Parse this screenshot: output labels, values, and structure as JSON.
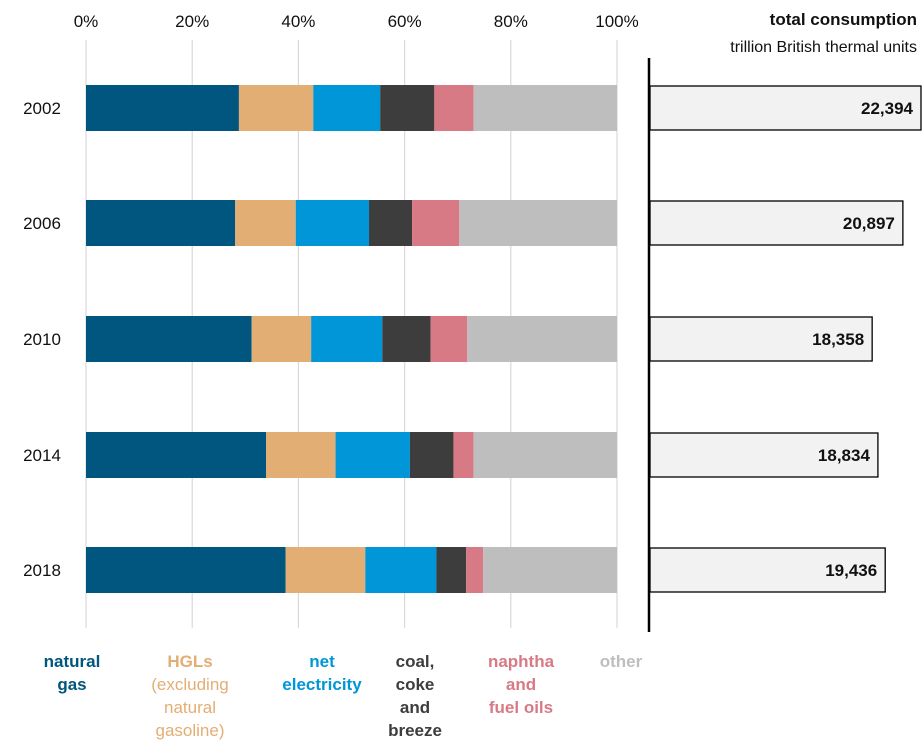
{
  "chart_data": {
    "type": "bar",
    "orientation": "horizontal",
    "stacked": true,
    "normalized": true,
    "categories": [
      "2002",
      "2006",
      "2010",
      "2014",
      "2018"
    ],
    "xlim": [
      0,
      100
    ],
    "x_ticks": [
      "0%",
      "20%",
      "40%",
      "60%",
      "80%",
      "100%"
    ],
    "grid": true,
    "legend_position": "bottom",
    "series": [
      {
        "name": "natural gas",
        "legend_lines": [
          "natural",
          "gas"
        ],
        "legend_bold": [
          true,
          true
        ],
        "color": "#00567e",
        "values": [
          28.8,
          28.1,
          31.2,
          33.9,
          37.6
        ]
      },
      {
        "name": "HGLs (excluding natural gasoline)",
        "legend_lines": [
          "HGLs",
          "(excluding",
          "natural",
          "gasoline)"
        ],
        "legend_bold": [
          true,
          false,
          false,
          false
        ],
        "color": "#e3ae74",
        "values": [
          14.0,
          11.4,
          11.2,
          13.1,
          15.0
        ]
      },
      {
        "name": "net electricity",
        "legend_lines": [
          "net",
          "electricity"
        ],
        "legend_bold": [
          true,
          true
        ],
        "color": "#0096d8",
        "values": [
          12.6,
          13.8,
          13.4,
          14.0,
          13.4
        ]
      },
      {
        "name": "coal, coke and breeze",
        "legend_lines": [
          "coal,",
          "coke",
          "and",
          "breeze"
        ],
        "legend_bold": [
          true,
          true,
          true,
          true
        ],
        "color": "#3d3d3d",
        "values": [
          10.2,
          8.1,
          9.1,
          8.2,
          5.6
        ]
      },
      {
        "name": "naphtha and fuel oils",
        "legend_lines": [
          "naphtha",
          "and",
          "fuel oils"
        ],
        "legend_bold": [
          true,
          true,
          true
        ],
        "color": "#d87a86",
        "values": [
          7.4,
          8.9,
          6.9,
          3.8,
          3.2
        ]
      },
      {
        "name": "other",
        "legend_lines": [
          "other"
        ],
        "legend_bold": [
          true
        ],
        "color": "#bebebe",
        "values": [
          27.0,
          29.7,
          28.2,
          27.0,
          25.2
        ]
      }
    ],
    "total_panel": {
      "title": "total consumption",
      "unit": "trillion British thermal units",
      "values": [
        22394,
        20897,
        18358,
        18834,
        19436
      ],
      "labels": [
        "22,394",
        "20,897",
        "18,358",
        "18,834",
        "19,436"
      ],
      "xlim": [
        0,
        22394
      ],
      "bar_color": "#f2f2f2"
    }
  }
}
